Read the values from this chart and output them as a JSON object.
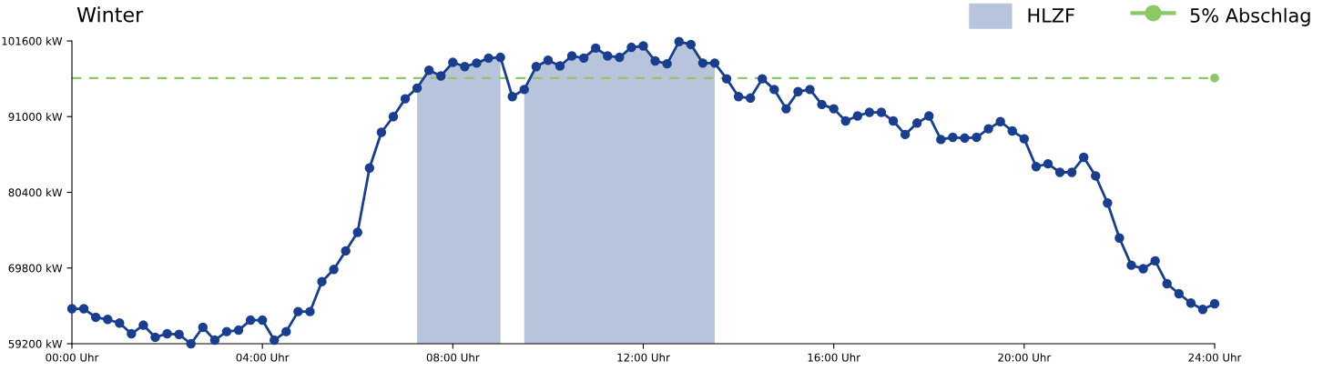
{
  "chart_data": {
    "type": "line",
    "title": "Winter",
    "categories": [
      "00:00 Uhr",
      null,
      null,
      null,
      null,
      null,
      null,
      null,
      null,
      null,
      null,
      null,
      null,
      null,
      null,
      null,
      "04:00 Uhr",
      null,
      null,
      null,
      null,
      null,
      null,
      null,
      null,
      null,
      null,
      null,
      null,
      null,
      null,
      null,
      "08:00 Uhr",
      null,
      null,
      null,
      null,
      null,
      null,
      null,
      null,
      null,
      null,
      null,
      null,
      null,
      null,
      null,
      "12:00 Uhr",
      null,
      null,
      null,
      null,
      null,
      null,
      null,
      null,
      null,
      null,
      null,
      null,
      null,
      null,
      null,
      "16:00 Uhr",
      null,
      null,
      null,
      null,
      null,
      null,
      null,
      null,
      null,
      null,
      null,
      null,
      null,
      null,
      null,
      "20:00 Uhr",
      null,
      null,
      null,
      null,
      null,
      null,
      null,
      null,
      null,
      null,
      null,
      null,
      null,
      null,
      null,
      "24:00 Uhr"
    ],
    "series": [
      {
        "type": "area",
        "name": "HLZF",
        "color": "#b8c4dc",
        "marker": "none",
        "values": [
          null,
          null,
          null,
          null,
          null,
          null,
          null,
          null,
          null,
          null,
          null,
          null,
          null,
          null,
          null,
          null,
          null,
          null,
          null,
          null,
          null,
          null,
          null,
          null,
          null,
          null,
          null,
          null,
          null,
          95000,
          97500,
          96700,
          98600,
          98000,
          98500,
          99200,
          99300,
          null,
          94800,
          98000,
          98900,
          98100,
          99500,
          99200,
          100600,
          99500,
          99300,
          100700,
          100900,
          98800,
          98400,
          101500,
          101100,
          98500,
          98500,
          null,
          null,
          null,
          null,
          null,
          null,
          null,
          null,
          null,
          null,
          null,
          null,
          null,
          null,
          null,
          null,
          null,
          null,
          null,
          null,
          null,
          null,
          null,
          null,
          null,
          null,
          null,
          null,
          null,
          null,
          null,
          null,
          null,
          null,
          null,
          null,
          null,
          null,
          null,
          null,
          null,
          null
        ]
      },
      {
        "color": "#1a3e8f",
        "marker": "circle",
        "values": [
          64100,
          64100,
          62900,
          62600,
          62100,
          60600,
          61800,
          60100,
          60600,
          60500,
          59200,
          61500,
          59700,
          60900,
          61100,
          62500,
          62500,
          59700,
          60900,
          63700,
          63700,
          67900,
          69600,
          72200,
          74800,
          83800,
          88800,
          91000,
          93500,
          95000,
          97500,
          96700,
          98600,
          98000,
          98500,
          99200,
          99300,
          93800,
          94800,
          98000,
          98900,
          98100,
          99500,
          99200,
          100600,
          99500,
          99300,
          100700,
          100900,
          98800,
          98400,
          101500,
          101100,
          98500,
          98500,
          96300,
          93800,
          93600,
          96300,
          94800,
          92100,
          94500,
          94800,
          92700,
          92100,
          90400,
          91100,
          91600,
          91600,
          90400,
          88500,
          90100,
          91100,
          87800,
          88100,
          88000,
          88100,
          89300,
          90300,
          89000,
          87900,
          84000,
          84400,
          83200,
          83200,
          85300,
          82700,
          78900,
          74000,
          70200,
          69700,
          70800,
          67600,
          66200,
          64900,
          64000,
          64800
        ]
      }
    ],
    "line_style": "solid",
    "ylim": [
      59200,
      101600
    ],
    "yticks": [
      {
        "value": 59200,
        "label": "59200 kW"
      },
      {
        "value": 69800,
        "label": "69800 kW"
      },
      {
        "value": 80400,
        "label": "80400 kW"
      },
      {
        "value": 91000,
        "label": "91000 kW"
      },
      {
        "value": 101600,
        "label": "101600 kW"
      }
    ],
    "ref_lines": [
      {
        "axis": "y",
        "value": 96400,
        "label": "5% Abschlag",
        "color": "#8cc866",
        "line_style": "dashed"
      }
    ],
    "grid": false,
    "legend": "top right"
  }
}
